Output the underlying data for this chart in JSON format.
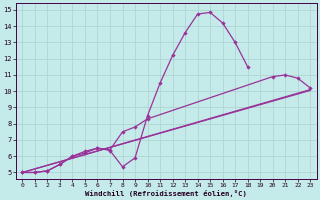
{
  "xlabel": "Windchill (Refroidissement éolien,°C)",
  "xlim": [
    -0.5,
    23.5
  ],
  "ylim": [
    4.6,
    15.4
  ],
  "xticks": [
    0,
    1,
    2,
    3,
    4,
    5,
    6,
    7,
    8,
    9,
    10,
    11,
    12,
    13,
    14,
    15,
    16,
    17,
    18,
    19,
    20,
    21,
    22,
    23
  ],
  "yticks": [
    5,
    6,
    7,
    8,
    9,
    10,
    11,
    12,
    13,
    14,
    15
  ],
  "bg_color": "#c5eaea",
  "line_color": "#993399",
  "grid_color": "#b0d8d8",
  "curve1_x": [
    0,
    1,
    2,
    3,
    4,
    5,
    6,
    7,
    8,
    9,
    10,
    11,
    12,
    13,
    14,
    15,
    16,
    17,
    18
  ],
  "curve1_y": [
    5,
    5,
    5.1,
    5.5,
    6.0,
    6.2,
    6.5,
    6.35,
    5.35,
    5.9,
    8.5,
    10.5,
    12.2,
    13.6,
    14.75,
    14.85,
    14.2,
    13.0,
    11.5
  ],
  "curve2_x": [
    0,
    1,
    2,
    3,
    4,
    5,
    6,
    7,
    8,
    9,
    10,
    20,
    21,
    22,
    23
  ],
  "curve2_y": [
    5,
    5,
    5.1,
    5.5,
    6.0,
    6.3,
    6.5,
    6.4,
    7.5,
    7.8,
    8.3,
    10.9,
    11.0,
    10.8,
    10.2
  ],
  "curve3_x": [
    0,
    23
  ],
  "curve3_y": [
    5,
    10.1
  ],
  "curve4_x": [
    0,
    23
  ],
  "curve4_y": [
    5,
    10.05
  ]
}
